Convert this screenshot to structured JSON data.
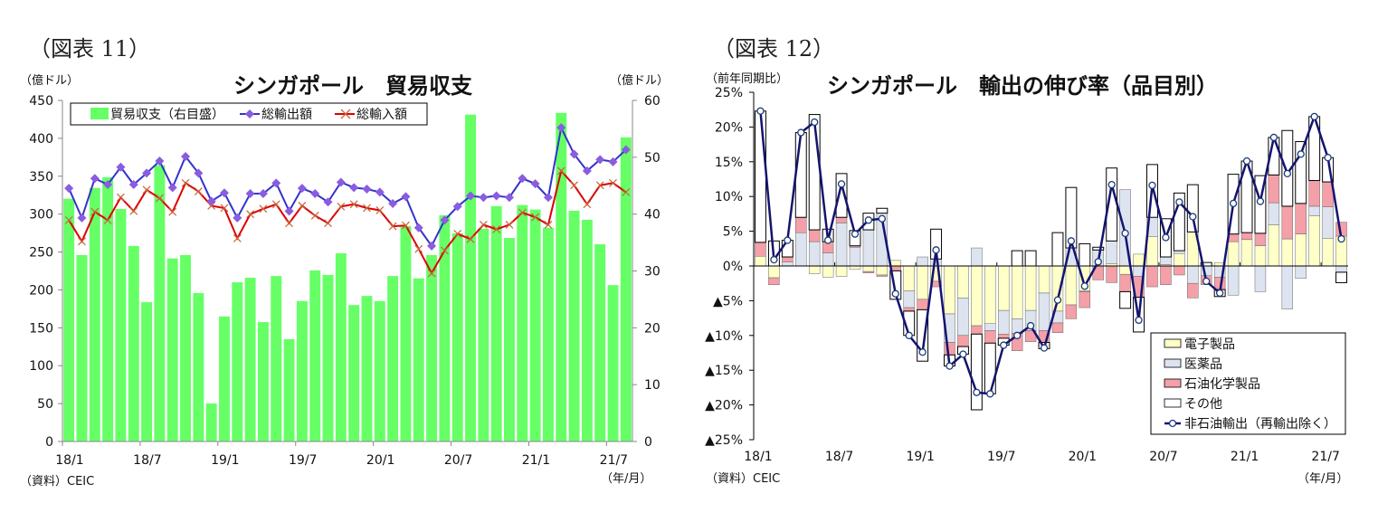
{
  "chart_data": [
    {
      "type": "bar+line",
      "figure_label": "（図表 11）",
      "title": "シンガポール　貿易収支",
      "ylabel_left": "（億ドル）",
      "ylabel_right": "（億ドル）",
      "xlabel": "（年/月）",
      "source": "（資料）CEIC",
      "ylim_left": [
        0,
        450
      ],
      "ylim_right": [
        0,
        60
      ],
      "yticks_left": [
        "0",
        "50",
        "100",
        "150",
        "200",
        "250",
        "300",
        "350",
        "400",
        "450"
      ],
      "yticks_right": [
        "0",
        "10",
        "20",
        "30",
        "40",
        "50",
        "60"
      ],
      "x_start": "18/1",
      "x_end": "21/8",
      "xtick_labels": [
        "18/1",
        "18/7",
        "19/1",
        "19/7",
        "20/1",
        "20/7",
        "21/1",
        "21/7"
      ],
      "legend": [
        "貿易収支（右目盛）",
        "総輸出額",
        "総輸入額"
      ],
      "legend_placement": "top-left",
      "colors": {
        "balance": "#66ff66",
        "exports": "#3333cc",
        "exports_marker": "#8a5ce0",
        "imports": "#dd0000",
        "imports_marker": "#c8643c"
      },
      "series": [
        {
          "name": "貿易収支（右目盛）",
          "axis": "right",
          "type": "bar",
          "values": [
            42.7,
            32.8,
            44.6,
            46.5,
            40.9,
            34.4,
            24.5,
            48.6,
            32.2,
            32.8,
            26.1,
            6.7,
            22,
            28,
            28.8,
            21,
            29.1,
            18,
            24.7,
            30.1,
            29.3,
            33.1,
            24,
            25.6,
            24.7,
            29.1,
            37.9,
            28.7,
            32.8,
            39.8,
            36.6,
            57.5,
            37.4,
            41.4,
            35.8,
            41.6,
            40.8,
            37.6,
            57.8,
            40.6,
            39,
            34.7,
            27.5,
            53.5
          ]
        },
        {
          "name": "総輸出額",
          "axis": "left",
          "type": "line",
          "values": [
            334,
            295,
            347,
            339,
            362,
            339,
            354,
            370,
            335,
            376,
            354,
            317,
            328,
            295,
            327,
            327,
            341,
            304,
            334,
            327,
            316,
            342,
            335,
            333,
            329,
            314,
            323,
            282,
            258,
            292,
            310,
            324,
            322,
            324,
            322,
            347,
            340,
            322,
            414,
            379,
            357,
            372,
            369,
            385
          ]
        },
        {
          "name": "総輸入額",
          "axis": "left",
          "type": "line",
          "values": [
            292,
            264,
            303,
            292,
            322,
            304,
            332,
            321,
            303,
            341,
            330,
            311,
            308,
            268,
            300,
            307,
            313,
            288,
            311,
            298,
            288,
            310,
            313,
            308,
            305,
            284,
            285,
            254,
            222,
            252,
            274,
            267,
            286,
            280,
            286,
            302,
            296,
            286,
            357,
            338,
            313,
            338,
            341,
            329
          ]
        }
      ]
    },
    {
      "type": "stacked-bar+line",
      "figure_label": "（図表 12）",
      "title": "シンガポール　輸出の伸び率（品目別）",
      "ylabel": "（前年同期比）",
      "xlabel": "（年/月）",
      "source": "（資料）CEIC",
      "ylim": [
        -25,
        25
      ],
      "yticks": [
        "▲25%",
        "▲20%",
        "▲15%",
        "▲10%",
        "▲5%",
        "0%",
        "5%",
        "10%",
        "15%",
        "20%",
        "25%"
      ],
      "x_start": "18/1",
      "x_end": "21/8",
      "xtick_labels": [
        "18/1",
        "18/7",
        "19/1",
        "19/7",
        "20/1",
        "20/7",
        "21/1",
        "21/7"
      ],
      "legend_placement": "bottom-right",
      "colors": {
        "electronics": "#ffffc8",
        "pharma": "#dde4f0",
        "petrochem": "#f4a0a8",
        "other": "#ffffff",
        "line": "#14146e"
      },
      "series": [
        {
          "name": "電子製品",
          "key": "electronics",
          "values": [
            1.4,
            -1.7,
            0,
            0,
            -1.1,
            -1.6,
            -1.5,
            -0.5,
            -0.8,
            -1.3,
            0.8,
            -3.6,
            -4.8,
            -2.2,
            -6.9,
            -4.6,
            -8.6,
            -8.3,
            -6.4,
            -7.6,
            -6.4,
            -3.9,
            -6.5,
            -5.6,
            -3.6,
            0,
            0.3,
            -1.2,
            1.7,
            4.2,
            0.2,
            1.8,
            4.9,
            0,
            0.5,
            3.5,
            3.8,
            2.9,
            5.9,
            3.9,
            4.6,
            7.2,
            4.0,
            4.3
          ]
        },
        {
          "name": "医薬品",
          "key": "pharma",
          "values": [
            0,
            0,
            0.6,
            4.8,
            3.5,
            1.9,
            6.2,
            2.7,
            5.2,
            7.6,
            0,
            -2.4,
            1.3,
            1.0,
            -4.1,
            -5.4,
            2.6,
            -1.0,
            -3.4,
            -2.1,
            -2.9,
            -5.4,
            -1.7,
            2.6,
            -0.1,
            2.3,
            3.3,
            11.0,
            -1.5,
            2.8,
            1.1,
            0.4,
            -2.5,
            -1.4,
            -1.6,
            -4.2,
            0,
            -3.7,
            3.2,
            -6.2,
            -1.8,
            1.4,
            4.5,
            -0.9
          ]
        },
        {
          "name": "石油化学製品",
          "key": "petrochem",
          "values": [
            2.0,
            -1.0,
            0.7,
            2.2,
            1.7,
            1.6,
            0.8,
            0.2,
            -0.2,
            -0.2,
            -0.7,
            -0.5,
            -1.5,
            -0.8,
            -1.8,
            -1.6,
            -1.2,
            -1.8,
            -0.6,
            -2.5,
            -1.6,
            -1.7,
            -1.4,
            -2.0,
            -2.3,
            -2.0,
            -2.4,
            -2.5,
            -3.0,
            -3.0,
            -2.7,
            -1.3,
            -2.1,
            -1.3,
            -1.8,
            1.1,
            1.0,
            1.8,
            4.0,
            4.7,
            4.4,
            3.7,
            3.6,
            2.0
          ]
        },
        {
          "name": "その他",
          "key": "other",
          "values": [
            18.9,
            3.6,
            2.4,
            12.2,
            16.6,
            1.8,
            6.3,
            2.2,
            2.4,
            0.7,
            -4.1,
            -3.5,
            -7.4,
            4.3,
            -1.6,
            -1.1,
            -10.9,
            -7.3,
            -1.0,
            2.2,
            2.2,
            -0.9,
            4.8,
            8.7,
            3.2,
            0.4,
            10.5,
            -2.4,
            -5.0,
            7.6,
            5.5,
            8.3,
            6.8,
            0.5,
            -1.0,
            8.6,
            10.3,
            8.3,
            5.4,
            10.9,
            8.9,
            9.2,
            3.5,
            -1.5
          ]
        },
        {
          "name": "非石油輸出（再輸出除く）",
          "key": "total",
          "type": "line",
          "values": [
            22.3,
            0.9,
            3.7,
            19.2,
            20.7,
            3.7,
            11.8,
            4.6,
            6.6,
            6.8,
            -4.0,
            -10.0,
            -12.4,
            2.3,
            -14.4,
            -12.7,
            -18.2,
            -18.4,
            -11.4,
            -10.0,
            -8.6,
            -11.8,
            -4.9,
            3.6,
            -2.9,
            0.6,
            11.7,
            4.7,
            -7.8,
            11.6,
            4.1,
            9.2,
            7.1,
            -2.2,
            -3.9,
            9.0,
            15.1,
            9.3,
            18.5,
            13.3,
            16.1,
            21.5,
            15.6,
            3.9
          ]
        }
      ]
    }
  ]
}
